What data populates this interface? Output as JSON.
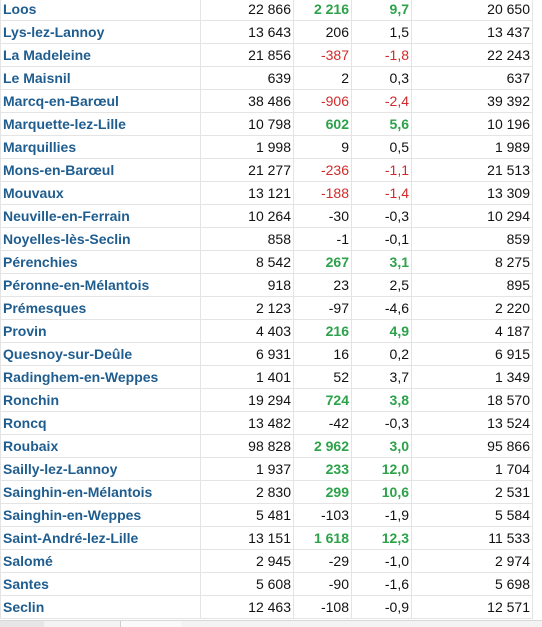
{
  "rows": [
    {
      "name": "Loos",
      "pop_a": "22 866",
      "diff": "2 216",
      "pct": "9,7",
      "pop_b": "20 650",
      "trend": "pos"
    },
    {
      "name": "Lys-lez-Lannoy",
      "pop_a": "13 643",
      "diff": "206",
      "pct": "1,5",
      "pop_b": "13 437",
      "trend": "flat"
    },
    {
      "name": "La Madeleine",
      "pop_a": "21 856",
      "diff": "-387",
      "pct": "-1,8",
      "pop_b": "22 243",
      "trend": "neg"
    },
    {
      "name": "Le Maisnil",
      "pop_a": "639",
      "diff": "2",
      "pct": "0,3",
      "pop_b": "637",
      "trend": "flat"
    },
    {
      "name": "Marcq-en-Barœul",
      "pop_a": "38 486",
      "diff": "-906",
      "pct": "-2,4",
      "pop_b": "39 392",
      "trend": "neg"
    },
    {
      "name": "Marquette-lez-Lille",
      "pop_a": "10 798",
      "diff": "602",
      "pct": "5,6",
      "pop_b": "10 196",
      "trend": "pos"
    },
    {
      "name": "Marquillies",
      "pop_a": "1 998",
      "diff": "9",
      "pct": "0,5",
      "pop_b": "1 989",
      "trend": "flat"
    },
    {
      "name": "Mons-en-Barœul",
      "pop_a": "21 277",
      "diff": "-236",
      "pct": "-1,1",
      "pop_b": "21 513",
      "trend": "neg"
    },
    {
      "name": "Mouvaux",
      "pop_a": "13 121",
      "diff": "-188",
      "pct": "-1,4",
      "pop_b": "13 309",
      "trend": "neg"
    },
    {
      "name": "Neuville-en-Ferrain",
      "pop_a": "10 264",
      "diff": "-30",
      "pct": "-0,3",
      "pop_b": "10 294",
      "trend": "flat"
    },
    {
      "name": "Noyelles-lès-Seclin",
      "pop_a": "858",
      "diff": "-1",
      "pct": "-0,1",
      "pop_b": "859",
      "trend": "flat"
    },
    {
      "name": "Pérenchies",
      "pop_a": "8 542",
      "diff": "267",
      "pct": "3,1",
      "pop_b": "8 275",
      "trend": "pos"
    },
    {
      "name": "Péronne-en-Mélantois",
      "pop_a": "918",
      "diff": "23",
      "pct": "2,5",
      "pop_b": "895",
      "trend": "flat"
    },
    {
      "name": "Prémesques",
      "pop_a": "2 123",
      "diff": "-97",
      "pct": "-4,6",
      "pop_b": "2 220",
      "trend": "flat"
    },
    {
      "name": "Provin",
      "pop_a": "4 403",
      "diff": "216",
      "pct": "4,9",
      "pop_b": "4 187",
      "trend": "pos"
    },
    {
      "name": "Quesnoy-sur-Deûle",
      "pop_a": "6 931",
      "diff": "16",
      "pct": "0,2",
      "pop_b": "6 915",
      "trend": "flat"
    },
    {
      "name": "Radinghem-en-Weppes",
      "pop_a": "1 401",
      "diff": "52",
      "pct": "3,7",
      "pop_b": "1 349",
      "trend": "flat"
    },
    {
      "name": "Ronchin",
      "pop_a": "19 294",
      "diff": "724",
      "pct": "3,8",
      "pop_b": "18 570",
      "trend": "pos"
    },
    {
      "name": "Roncq",
      "pop_a": "13 482",
      "diff": "-42",
      "pct": "-0,3",
      "pop_b": "13 524",
      "trend": "flat"
    },
    {
      "name": "Roubaix",
      "pop_a": "98 828",
      "diff": "2 962",
      "pct": "3,0",
      "pop_b": "95 866",
      "trend": "pos"
    },
    {
      "name": "Sailly-lez-Lannoy",
      "pop_a": "1 937",
      "diff": "233",
      "pct": "12,0",
      "pop_b": "1 704",
      "trend": "pos"
    },
    {
      "name": "Sainghin-en-Mélantois",
      "pop_a": "2 830",
      "diff": "299",
      "pct": "10,6",
      "pop_b": "2 531",
      "trend": "pos"
    },
    {
      "name": "Sainghin-en-Weppes",
      "pop_a": "5 481",
      "diff": "-103",
      "pct": "-1,9",
      "pop_b": "5 584",
      "trend": "flat"
    },
    {
      "name": "Saint-André-lez-Lille",
      "pop_a": "13 151",
      "diff": "1 618",
      "pct": "12,3",
      "pop_b": "11 533",
      "trend": "pos"
    },
    {
      "name": "Salomé",
      "pop_a": "2 945",
      "diff": "-29",
      "pct": "-1,0",
      "pop_b": "2 974",
      "trend": "flat"
    },
    {
      "name": "Santes",
      "pop_a": "5 608",
      "diff": "-90",
      "pct": "-1,6",
      "pop_b": "5 698",
      "trend": "flat"
    },
    {
      "name": "Seclin",
      "pop_a": "12 463",
      "diff": "-108",
      "pct": "-0,9",
      "pop_b": "12 571",
      "trend": "flat"
    }
  ],
  "colors": {
    "name_blue": "#1f5d8f",
    "positive_green": "#2ca24a",
    "negative_red": "#d22a2a"
  }
}
